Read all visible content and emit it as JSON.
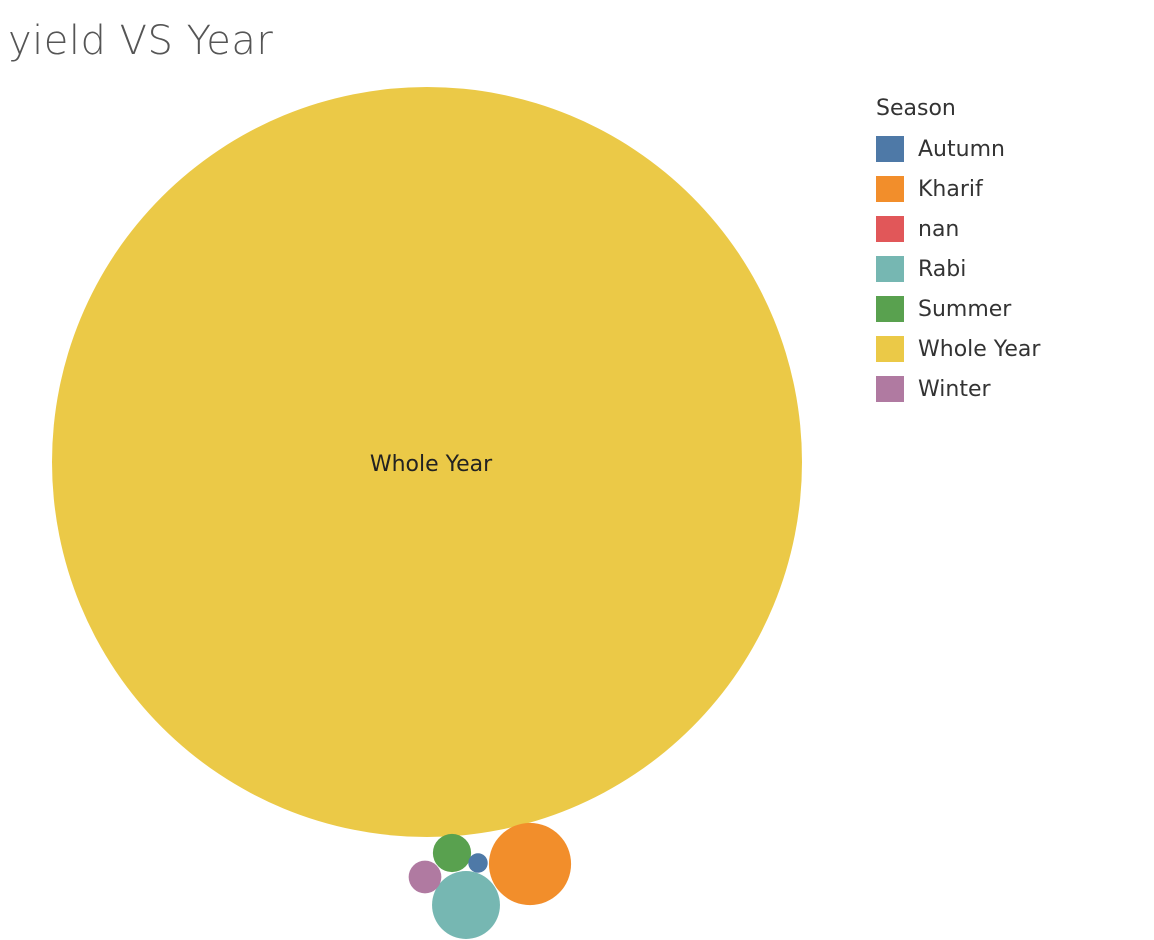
{
  "chart_data": {
    "type": "bubble",
    "title": "yield VS Year",
    "legend": {
      "title": "Season",
      "placement": "right"
    },
    "series": [
      {
        "name": "Whole Year",
        "value": 100,
        "color": "#EBC947",
        "label": "Whole Year"
      },
      {
        "name": "Kharif",
        "value": 1.2,
        "color": "#F28E2B",
        "label": ""
      },
      {
        "name": "Rabi",
        "value": 0.82,
        "color": "#76B7B2",
        "label": ""
      },
      {
        "name": "Summer",
        "value": 0.26,
        "color": "#59A14F",
        "label": ""
      },
      {
        "name": "Winter",
        "value": 0.19,
        "color": "#B07AA1",
        "label": ""
      },
      {
        "name": "Autumn",
        "value": 0.067,
        "color": "#4E79A7",
        "label": ""
      },
      {
        "name": "nan",
        "value": 0,
        "color": "#E15759",
        "label": ""
      }
    ],
    "legend_order": [
      "Autumn",
      "Kharif",
      "nan",
      "Rabi",
      "Summer",
      "Whole Year",
      "Winter"
    ]
  }
}
